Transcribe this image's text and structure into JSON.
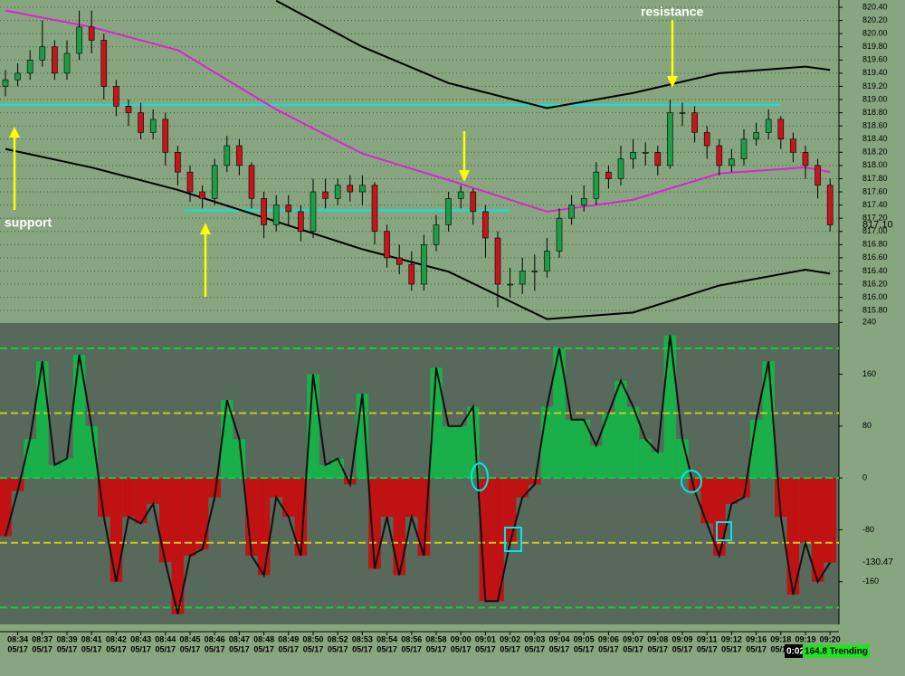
{
  "chart_data": [
    {
      "type": "candlestick",
      "ylim": [
        815.61,
        820.51
      ],
      "yticks": [
        {
          "value": 820.4,
          "label": "820.40"
        },
        {
          "value": 820.2,
          "label": "820.20"
        },
        {
          "value": 820.0,
          "label": "820.00"
        },
        {
          "value": 819.8,
          "label": "819.80"
        },
        {
          "value": 819.6,
          "label": "819.60"
        },
        {
          "value": 819.4,
          "label": "819.40"
        },
        {
          "value": 819.2,
          "label": "819.20"
        },
        {
          "value": 819.0,
          "label": "819.00"
        },
        {
          "value": 818.8,
          "label": "818.80"
        },
        {
          "value": 818.6,
          "label": "818.60"
        },
        {
          "value": 818.4,
          "label": "818.40"
        },
        {
          "value": 818.2,
          "label": "818.20"
        },
        {
          "value": 818.0,
          "label": "818.00"
        },
        {
          "value": 817.8,
          "label": "817.80"
        },
        {
          "value": 817.6,
          "label": "817.60"
        },
        {
          "value": 817.4,
          "label": "817.40"
        },
        {
          "value": 817.2,
          "label": "817.20"
        },
        {
          "value": 817.0,
          "label": "817.00"
        },
        {
          "value": 816.8,
          "label": "816.80"
        },
        {
          "value": 816.6,
          "label": "816.60"
        },
        {
          "value": 816.4,
          "label": "816.40"
        },
        {
          "value": 816.2,
          "label": "816.20"
        },
        {
          "value": 816.0,
          "label": "816.00"
        },
        {
          "value": 815.8,
          "label": "815.80"
        }
      ],
      "grid": true,
      "up_color": "#1e9c48",
      "down_color": "#c4161c",
      "open": [
        819.2,
        819.3,
        819.4,
        819.6,
        819.8,
        819.4,
        819.7,
        820.1,
        819.9,
        819.2,
        818.9,
        818.8,
        818.5,
        818.7,
        818.2,
        817.9,
        817.6,
        817.5,
        818.0,
        818.3,
        818.0,
        817.5,
        817.1,
        817.4,
        817.3,
        817.0,
        817.6,
        817.5,
        817.7,
        817.6,
        817.7,
        817.0,
        816.6,
        816.5,
        816.2,
        816.8,
        817.1,
        817.5,
        817.6,
        817.3,
        816.9,
        816.2,
        816.2,
        816.4,
        816.4,
        816.7,
        817.2,
        817.4,
        817.5,
        817.9,
        817.8,
        818.1,
        818.2,
        818.2,
        818.0,
        818.8,
        818.8,
        818.5,
        818.3,
        818.0,
        818.1,
        818.4,
        818.5,
        818.7,
        818.4,
        818.2,
        818.0,
        817.7
      ],
      "high": [
        819.45,
        819.55,
        819.75,
        820.2,
        819.9,
        819.9,
        820.35,
        820.35,
        820.0,
        819.3,
        819.0,
        818.95,
        818.85,
        818.8,
        818.3,
        818.0,
        817.7,
        818.1,
        818.45,
        818.4,
        818.05,
        817.6,
        817.55,
        817.55,
        817.4,
        817.8,
        817.8,
        817.8,
        817.85,
        817.85,
        817.75,
        817.1,
        816.8,
        816.7,
        816.95,
        817.25,
        817.6,
        817.7,
        817.65,
        817.4,
        817.0,
        816.45,
        816.6,
        816.65,
        816.9,
        817.35,
        817.55,
        817.7,
        818.05,
        818.0,
        818.3,
        818.4,
        818.35,
        818.3,
        819.0,
        818.95,
        818.9,
        818.6,
        818.4,
        818.25,
        818.55,
        818.65,
        818.85,
        818.75,
        818.5,
        818.3,
        818.1,
        817.8
      ],
      "low": [
        819.05,
        819.2,
        819.3,
        819.5,
        819.3,
        819.3,
        819.6,
        819.7,
        819.0,
        818.75,
        818.6,
        818.4,
        818.4,
        818.0,
        817.7,
        817.45,
        817.35,
        817.4,
        817.9,
        817.85,
        817.35,
        816.9,
        817.0,
        817.1,
        816.85,
        816.9,
        817.35,
        817.4,
        817.45,
        817.4,
        816.8,
        816.45,
        816.35,
        816.1,
        816.1,
        816.7,
        817.0,
        817.35,
        817.1,
        816.6,
        815.85,
        816.0,
        816.05,
        816.1,
        816.3,
        816.6,
        817.1,
        817.3,
        817.4,
        817.65,
        817.7,
        817.95,
        818.0,
        817.85,
        817.95,
        818.6,
        818.35,
        818.1,
        817.85,
        817.9,
        818.0,
        818.3,
        818.4,
        818.25,
        818.05,
        817.8,
        817.5,
        817.0
      ],
      "close": [
        819.3,
        819.4,
        819.6,
        819.8,
        819.4,
        819.7,
        820.1,
        819.9,
        819.2,
        818.9,
        818.8,
        818.5,
        818.7,
        818.2,
        817.9,
        817.6,
        817.5,
        818.0,
        818.3,
        818.0,
        817.5,
        817.1,
        817.4,
        817.3,
        817.0,
        817.6,
        817.5,
        817.7,
        817.6,
        817.7,
        817.0,
        816.6,
        816.5,
        816.2,
        816.8,
        817.1,
        817.5,
        817.6,
        817.3,
        816.9,
        816.2,
        816.2,
        816.4,
        816.4,
        816.7,
        817.2,
        817.4,
        817.5,
        817.9,
        817.8,
        818.1,
        818.2,
        818.2,
        818.0,
        818.8,
        818.8,
        818.5,
        818.3,
        818.0,
        818.1,
        818.4,
        818.5,
        818.7,
        818.4,
        818.2,
        818.0,
        817.7,
        817.1
      ],
      "last_label": "817.10",
      "lines": [
        {
          "color": "#e020d8",
          "x": [
            0,
            7,
            14,
            22,
            29,
            36,
            44,
            51,
            58,
            65,
            67
          ],
          "values": [
            820.35,
            820.1,
            819.75,
            818.85,
            818.18,
            817.78,
            817.3,
            817.48,
            817.88,
            817.97,
            817.9
          ]
        },
        {
          "color": "#000000",
          "x": [
            22,
            29,
            36,
            44,
            51,
            58,
            65,
            67
          ],
          "values": [
            820.5,
            819.8,
            819.25,
            818.87,
            819.1,
            819.4,
            819.5,
            819.45
          ]
        },
        {
          "color": "#000000",
          "x": [
            0,
            7,
            14,
            22,
            29,
            36,
            44,
            51,
            58,
            65,
            67
          ],
          "values": [
            818.25,
            817.97,
            817.63,
            817.15,
            816.73,
            816.39,
            815.67,
            815.77,
            816.18,
            816.42,
            816.36
          ]
        }
      ],
      "levels": [
        {
          "value": 818.92,
          "from": 0,
          "to": 63,
          "color": "#00e8e8"
        },
        {
          "value": 817.32,
          "from": 15,
          "to": 41,
          "color": "#00e8e8"
        }
      ],
      "annotations": [
        "resistance",
        "support"
      ]
    },
    {
      "type": "cci",
      "ylim": [
        -226,
        239
      ],
      "yticks": [
        240,
        160,
        80,
        0,
        -80,
        -160
      ],
      "levels": [
        {
          "value": 200,
          "color": "#1ec83c"
        },
        {
          "value": 100,
          "color": "#c8c820"
        },
        {
          "value": 0,
          "color": "#1ec83c"
        },
        {
          "value": -100,
          "color": "#c8c820"
        },
        {
          "value": -200,
          "color": "#1ec83c"
        }
      ],
      "pos_color": "#19b04a",
      "neg_color": "#c01212",
      "values": [
        -90,
        -20,
        60,
        180,
        20,
        30,
        190,
        80,
        -60,
        -160,
        -60,
        -70,
        -40,
        -130,
        -210,
        -120,
        -110,
        -30,
        120,
        60,
        -120,
        -150,
        -30,
        -60,
        -120,
        160,
        20,
        30,
        -10,
        130,
        -140,
        -60,
        -150,
        -60,
        -120,
        170,
        80,
        80,
        110,
        -190,
        -190,
        -100,
        -30,
        -10,
        110,
        200,
        90,
        90,
        50,
        100,
        150,
        110,
        60,
        40,
        220,
        60,
        -20,
        -70,
        -120,
        -40,
        -30,
        90,
        180,
        -60,
        -180,
        -100,
        -160,
        -130.47
      ],
      "xticks": [
        {
          "value": 1,
          "label": "08:34"
        },
        {
          "value": 3,
          "label": "08:37"
        },
        {
          "value": 5,
          "label": "08:39"
        },
        {
          "value": 7,
          "label": "08:41"
        },
        {
          "value": 9,
          "label": "08:42"
        },
        {
          "value": 11,
          "label": "08:43"
        },
        {
          "value": 13,
          "label": "08:44"
        },
        {
          "value": 15,
          "label": "08:45"
        },
        {
          "value": 17,
          "label": "08:46"
        },
        {
          "value": 19,
          "label": "08:47"
        },
        {
          "value": 21,
          "label": "08:48"
        },
        {
          "value": 23,
          "label": "08:49"
        },
        {
          "value": 25,
          "label": "08:50"
        },
        {
          "value": 27,
          "label": "08:52"
        },
        {
          "value": 29,
          "label": "08:53"
        },
        {
          "value": 31,
          "label": "08:54"
        },
        {
          "value": 33,
          "label": "08:56"
        },
        {
          "value": 35,
          "label": "08:58"
        },
        {
          "value": 37,
          "label": "09:00"
        },
        {
          "value": 39,
          "label": "09:01"
        },
        {
          "value": 41,
          "label": "09:02"
        },
        {
          "value": 43,
          "label": "09:03"
        },
        {
          "value": 45,
          "label": "09:04"
        },
        {
          "value": 47,
          "label": "09:05"
        },
        {
          "value": 49,
          "label": "09:06"
        },
        {
          "value": 51,
          "label": "09:07"
        },
        {
          "value": 53,
          "label": "09:08"
        },
        {
          "value": 55,
          "label": "09:09"
        },
        {
          "value": 57,
          "label": "09:11"
        },
        {
          "value": 59,
          "label": "09:12"
        },
        {
          "value": 61,
          "label": "09:16"
        },
        {
          "value": 63,
          "label": "09:18"
        },
        {
          "value": 65,
          "label": "09:19"
        },
        {
          "value": 67,
          "label": "09:20"
        }
      ],
      "xtick_dates": [
        "05/17",
        "05/17",
        "05/17",
        "05/17",
        "05/17",
        "05/17",
        "05/17",
        "05/17",
        "05/17",
        "05/17",
        "05/17",
        "05/17",
        "05/17",
        "05/17",
        "05/17",
        "05/17",
        "05/17",
        "05/17",
        "05/17",
        "05/17",
        "05/17",
        "05/17",
        "05/17",
        "05/17",
        "05/17",
        "05/17",
        "05/17",
        "05/17",
        "05/17",
        "05/17",
        "05/17",
        "05/17",
        "05/17",
        "05/17"
      ]
    }
  ],
  "status": {
    "timer": "0:02",
    "label": "164.8 Trending"
  }
}
